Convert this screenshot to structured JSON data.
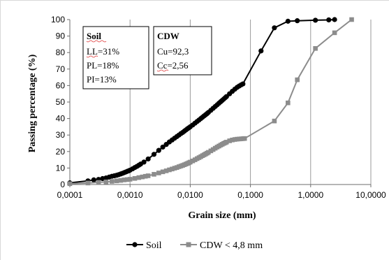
{
  "chart_data": {
    "type": "scatter",
    "xlabel": "Grain size (mm)",
    "ylabel": "Passing percentage (%)",
    "x_scale": "log",
    "xlim": [
      0.0001,
      10
    ],
    "ylim": [
      0,
      100
    ],
    "grid": "vertical-major",
    "legend_position": "bottom",
    "x_ticks": [
      {
        "value": 0.0001,
        "label": "0,0001"
      },
      {
        "value": 0.001,
        "label": "0,0010"
      },
      {
        "value": 0.01,
        "label": "0,0100"
      },
      {
        "value": 0.1,
        "label": "0,1000"
      },
      {
        "value": 1,
        "label": "1,0000"
      },
      {
        "value": 10,
        "label": "10,0000"
      }
    ],
    "y_ticks": [
      0,
      10,
      20,
      30,
      40,
      50,
      60,
      70,
      80,
      90,
      100
    ],
    "series": [
      {
        "name": "Soil",
        "color": "#000000",
        "marker": "circle",
        "x": [
          0.0001,
          0.0002,
          0.00025,
          0.0003,
          0.00035,
          0.0004,
          0.00045,
          0.0005,
          0.00055,
          0.0006,
          0.00065,
          0.0007,
          0.00075,
          0.0008,
          0.00085,
          0.0009,
          0.00095,
          0.001,
          0.0011,
          0.0012,
          0.0013,
          0.0014,
          0.0015,
          0.0017,
          0.002,
          0.0025,
          0.003,
          0.0035,
          0.004,
          0.0045,
          0.005,
          0.0055,
          0.006,
          0.0065,
          0.007,
          0.0075,
          0.008,
          0.0085,
          0.009,
          0.0095,
          0.01,
          0.011,
          0.012,
          0.013,
          0.014,
          0.015,
          0.016,
          0.017,
          0.018,
          0.019,
          0.02,
          0.022,
          0.024,
          0.026,
          0.028,
          0.03,
          0.032,
          0.034,
          0.036,
          0.038,
          0.04,
          0.045,
          0.05,
          0.055,
          0.06,
          0.065,
          0.07,
          0.075,
          0.15,
          0.25,
          0.42,
          0.6,
          1.2,
          2.0,
          2.5
        ],
        "y": [
          1.0,
          2.2,
          2.8,
          3.1,
          3.6,
          4.0,
          4.5,
          5.0,
          5.3,
          5.6,
          6.0,
          6.4,
          6.8,
          7.2,
          7.6,
          8.0,
          8.3,
          8.7,
          9.5,
          10.3,
          11.0,
          11.7,
          12.4,
          13.6,
          15.5,
          18.3,
          20.7,
          22.7,
          24.3,
          25.8,
          27.0,
          28.1,
          29.1,
          30.0,
          30.9,
          31.6,
          32.4,
          33.1,
          33.8,
          34.4,
          35.0,
          36.1,
          37.2,
          38.2,
          39.1,
          40.0,
          40.8,
          41.6,
          42.3,
          43.0,
          43.7,
          45.0,
          46.2,
          47.3,
          48.3,
          49.3,
          50.2,
          51.0,
          51.8,
          52.6,
          53.3,
          55.0,
          56.5,
          57.8,
          58.9,
          59.7,
          60.4,
          61.0,
          81.0,
          95.0,
          99.0,
          99.3,
          99.6,
          99.8,
          100.0
        ]
      },
      {
        "name": "CDW < 4,8 mm",
        "color": "#8c8c8c",
        "marker": "square",
        "x": [
          0.0001,
          0.0002,
          0.0003,
          0.0004,
          0.0005,
          0.0006,
          0.0007,
          0.0008,
          0.0009,
          0.001,
          0.0012,
          0.0014,
          0.0016,
          0.0018,
          0.002,
          0.0025,
          0.003,
          0.0035,
          0.004,
          0.0045,
          0.005,
          0.0055,
          0.006,
          0.0065,
          0.007,
          0.0075,
          0.008,
          0.0085,
          0.009,
          0.0095,
          0.01,
          0.011,
          0.012,
          0.013,
          0.014,
          0.015,
          0.016,
          0.017,
          0.018,
          0.019,
          0.02,
          0.022,
          0.024,
          0.026,
          0.028,
          0.03,
          0.032,
          0.034,
          0.036,
          0.038,
          0.04,
          0.045,
          0.05,
          0.055,
          0.06,
          0.065,
          0.07,
          0.075,
          0.08,
          0.25,
          0.42,
          0.6,
          1.2,
          2.5,
          4.8
        ],
        "y": [
          0.5,
          0.9,
          1.3,
          1.6,
          1.9,
          2.2,
          2.5,
          2.8,
          3.0,
          3.2,
          3.7,
          4.2,
          4.6,
          5.0,
          5.3,
          6.2,
          7.0,
          7.7,
          8.3,
          8.9,
          9.4,
          9.9,
          10.3,
          10.8,
          11.2,
          11.6,
          12.0,
          12.4,
          12.8,
          13.2,
          13.6,
          14.3,
          15.0,
          15.7,
          16.3,
          16.9,
          17.5,
          18.0,
          18.5,
          19.0,
          19.5,
          20.4,
          21.2,
          22.0,
          22.7,
          23.3,
          23.9,
          24.4,
          24.9,
          25.3,
          25.7,
          26.5,
          27.0,
          27.3,
          27.5,
          27.6,
          27.7,
          27.8,
          27.9,
          38.5,
          49.5,
          63.5,
          82.5,
          92.0,
          100.0
        ]
      }
    ],
    "annotations": [
      {
        "title": "Soil",
        "lines": [
          "LL=31%",
          "PL=18%",
          "PI=13%"
        ]
      },
      {
        "title": "CDW",
        "lines": [
          "Cu=92,3",
          "Cc=2,56"
        ]
      }
    ]
  }
}
